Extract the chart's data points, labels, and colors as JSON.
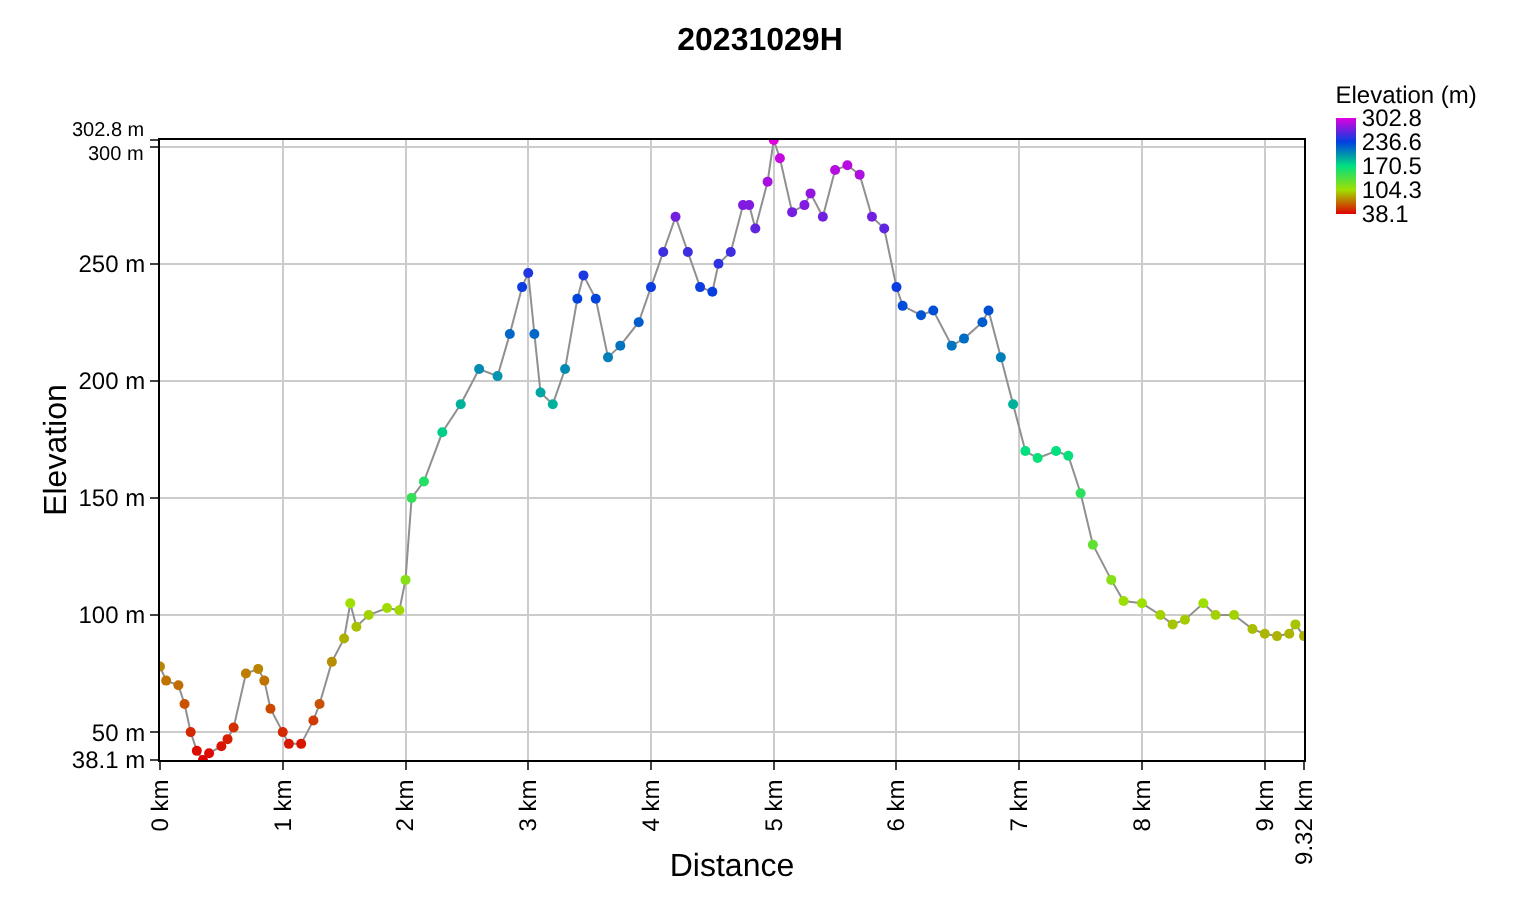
{
  "chart_data": {
    "type": "line",
    "title": "20231029H",
    "xlabel": "Distance",
    "ylabel": "Elevation",
    "clabel": "Elevation (m)",
    "x": [
      0,
      0.05,
      0.15,
      0.2,
      0.25,
      0.3,
      0.35,
      0.4,
      0.5,
      0.55,
      0.6,
      0.7,
      0.8,
      0.85,
      0.9,
      1.0,
      1.05,
      1.15,
      1.25,
      1.3,
      1.4,
      1.5,
      1.55,
      1.6,
      1.7,
      1.85,
      1.95,
      2.0,
      2.05,
      2.15,
      2.3,
      2.45,
      2.6,
      2.75,
      2.85,
      2.95,
      3.0,
      3.05,
      3.1,
      3.2,
      3.3,
      3.4,
      3.45,
      3.55,
      3.65,
      3.75,
      3.9,
      4.0,
      4.1,
      4.2,
      4.3,
      4.4,
      4.5,
      4.55,
      4.65,
      4.75,
      4.8,
      4.85,
      4.95,
      5.0,
      5.05,
      5.15,
      5.25,
      5.3,
      5.4,
      5.5,
      5.6,
      5.7,
      5.8,
      5.9,
      6.0,
      6.05,
      6.2,
      6.3,
      6.45,
      6.55,
      6.7,
      6.75,
      6.85,
      6.95,
      7.05,
      7.15,
      7.3,
      7.4,
      7.5,
      7.6,
      7.75,
      7.85,
      8.0,
      8.15,
      8.25,
      8.35,
      8.5,
      8.6,
      8.75,
      8.9,
      9.0,
      9.1,
      9.2,
      9.25,
      9.32
    ],
    "series": [
      {
        "color": "#909090",
        "values": [
          78,
          72,
          70,
          62,
          50,
          42,
          38.1,
          41,
          44,
          47,
          52,
          75,
          77,
          72,
          60,
          50,
          45,
          45,
          55,
          62,
          80,
          90,
          105,
          95,
          100,
          103,
          102,
          115,
          150,
          157,
          178,
          190,
          205,
          202,
          220,
          240,
          246,
          220,
          195,
          190,
          205,
          235,
          245,
          235,
          210,
          215,
          225,
          240,
          255,
          270,
          255,
          240,
          238,
          250,
          255,
          275,
          275,
          265,
          285,
          302.8,
          295,
          272,
          275,
          280,
          270,
          290,
          292,
          288,
          270,
          265,
          240,
          232,
          228,
          230,
          215,
          218,
          225,
          230,
          210,
          190,
          170,
          167,
          170,
          168,
          152,
          130,
          115,
          106,
          105,
          100,
          96,
          98,
          105,
          100,
          100,
          94,
          92,
          91,
          92,
          96,
          91
        ],
        "name": null
      }
    ],
    "xlim": [
      0,
      9.32
    ],
    "xticks": [
      {
        "value": 0,
        "label": "0 km"
      },
      {
        "value": 1,
        "label": "1 km"
      },
      {
        "value": 2,
        "label": "2 km"
      },
      {
        "value": 3,
        "label": "3 km"
      },
      {
        "value": 4,
        "label": "4 km"
      },
      {
        "value": 5,
        "label": "5 km"
      },
      {
        "value": 6,
        "label": "6 km"
      },
      {
        "value": 7,
        "label": "7 km"
      },
      {
        "value": 8,
        "label": "8 km"
      },
      {
        "value": 9,
        "label": "9 km"
      },
      {
        "value": 9.32,
        "label": "9.32 km"
      }
    ],
    "ylim": [
      38.1,
      302.8
    ],
    "yticks": [
      {
        "value": 38.1,
        "label": "38.1 m"
      },
      {
        "value": 50,
        "label": "50 m"
      },
      {
        "value": 100,
        "label": "100 m"
      },
      {
        "value": 150,
        "label": "150 m"
      },
      {
        "value": 200,
        "label": "200 m"
      },
      {
        "value": 250,
        "label": "250 m"
      },
      {
        "value": 300,
        "label": "300 m"
      },
      {
        "value": 302.8,
        "label": "302.8 m"
      }
    ],
    "clim": [
      38.1,
      302.8
    ],
    "cticks": [
      38.1,
      104.3,
      170.5,
      236.6,
      302.8
    ],
    "grid": true,
    "marker": "circle",
    "line_style": "solid"
  }
}
